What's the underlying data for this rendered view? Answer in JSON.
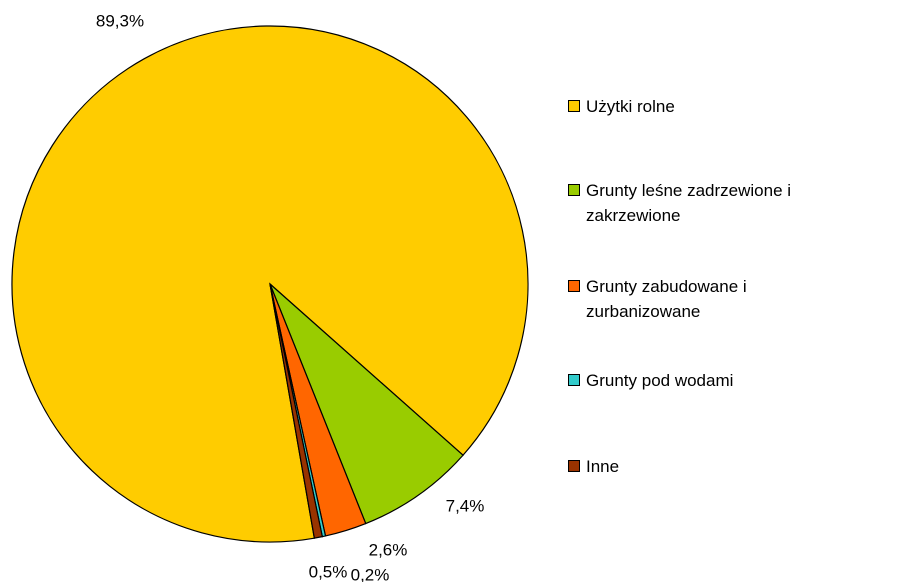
{
  "chart_data": {
    "type": "pie",
    "categories": [
      "Użytki rolne",
      "Grunty leśne zadrzewione i zakrzewione",
      "Grunty zabudowane i zurbanizowane",
      "Grunty pod wodami",
      "Inne"
    ],
    "values": [
      89.3,
      7.4,
      2.6,
      0.2,
      0.5
    ],
    "value_labels": [
      "89,3%",
      "7,4%",
      "2,6%",
      "0,2%",
      "0,5%"
    ],
    "colors": [
      "#ffcc00",
      "#99cc00",
      "#ff6600",
      "#33cccc",
      "#993300"
    ],
    "legend": "right"
  }
}
